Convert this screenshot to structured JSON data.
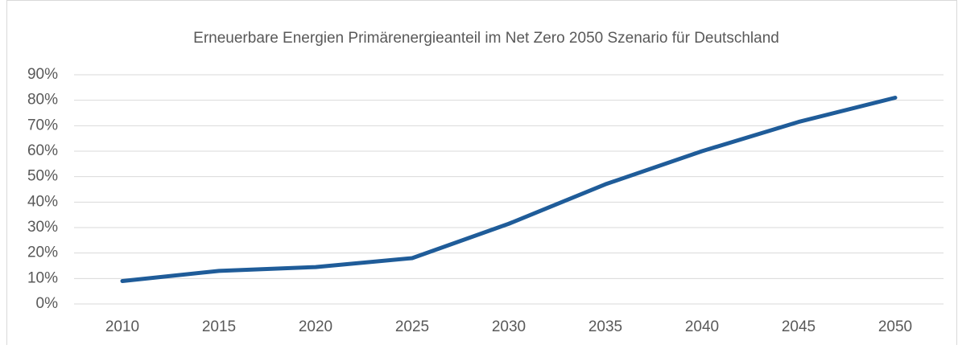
{
  "chart_data": {
    "type": "line",
    "title": "Erneuerbare Energien Primärenergieanteil im Net Zero 2050 Szenario für Deutschland",
    "categories": [
      "2010",
      "2015",
      "2020",
      "2025",
      "2030",
      "2035",
      "2040",
      "2045",
      "2050"
    ],
    "series": [
      {
        "name": "Primärenergieanteil",
        "color": "#1f5c99",
        "values": [
          9,
          13,
          14.5,
          18,
          31.5,
          47,
          60,
          71.5,
          81
        ]
      }
    ],
    "ylim": [
      0,
      90
    ],
    "yticks": [
      {
        "value": 0,
        "label": "0%"
      },
      {
        "value": 10,
        "label": "10%"
      },
      {
        "value": 20,
        "label": "20%"
      },
      {
        "value": 30,
        "label": "30%"
      },
      {
        "value": 40,
        "label": "40%"
      },
      {
        "value": 50,
        "label": "50%"
      },
      {
        "value": 60,
        "label": "60%"
      },
      {
        "value": 70,
        "label": "70%"
      },
      {
        "value": 80,
        "label": "80%"
      },
      {
        "value": 90,
        "label": "90%"
      }
    ],
    "grid": true
  }
}
